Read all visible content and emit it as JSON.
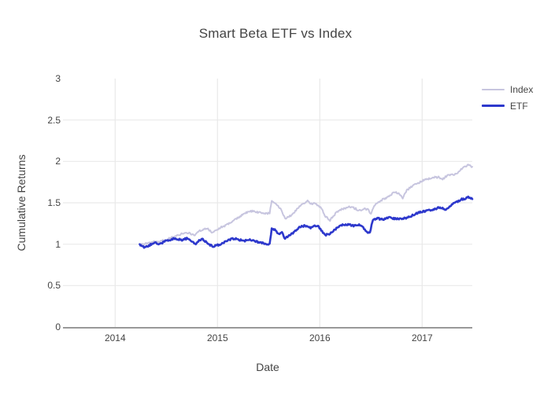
{
  "title": "Smart Beta ETF vs Index",
  "colors": {
    "text": "#444444",
    "grid": "#e9e9e9",
    "axis_line": "#999999",
    "background": "#ffffff",
    "index_line": "#c7c5df",
    "etf_line": "#2d38cc"
  },
  "legend": {
    "items": [
      "Index",
      "ETF"
    ]
  },
  "chart_data": {
    "type": "line",
    "title": "Smart Beta ETF vs Index",
    "xlabel": "Date",
    "ylabel": "Cumulative Returns",
    "xlim": [
      2013.49,
      2017.49
    ],
    "ylim": [
      0,
      3
    ],
    "grid": true,
    "legend_position": "right-outside",
    "noise_amplitude": 0.011,
    "xticks": [
      {
        "v": 2014,
        "label": "2014"
      },
      {
        "v": 2015,
        "label": "2015"
      },
      {
        "v": 2016,
        "label": "2016"
      },
      {
        "v": 2017,
        "label": "2017"
      }
    ],
    "yticks": [
      {
        "v": 0,
        "label": "0"
      },
      {
        "v": 0.5,
        "label": "0.5"
      },
      {
        "v": 1,
        "label": "1"
      },
      {
        "v": 1.5,
        "label": "1.5"
      },
      {
        "v": 2,
        "label": "2"
      },
      {
        "v": 2.5,
        "label": "2.5"
      },
      {
        "v": 3,
        "label": "3"
      }
    ],
    "series": [
      {
        "name": "Index",
        "color": "#c7c5df",
        "width": 2,
        "points": [
          [
            2014.24,
            1.0
          ],
          [
            2014.27,
            0.995
          ],
          [
            2014.31,
            1.01
          ],
          [
            2014.36,
            1.025
          ],
          [
            2014.42,
            1.03
          ],
          [
            2014.49,
            1.05
          ],
          [
            2014.55,
            1.08
          ],
          [
            2014.59,
            1.1
          ],
          [
            2014.64,
            1.12
          ],
          [
            2014.7,
            1.14
          ],
          [
            2014.74,
            1.125
          ],
          [
            2014.78,
            1.11
          ],
          [
            2014.82,
            1.155
          ],
          [
            2014.87,
            1.185
          ],
          [
            2014.9,
            1.19
          ],
          [
            2014.95,
            1.14
          ],
          [
            2015.0,
            1.175
          ],
          [
            2015.03,
            1.2
          ],
          [
            2015.1,
            1.24
          ],
          [
            2015.18,
            1.3
          ],
          [
            2015.26,
            1.37
          ],
          [
            2015.31,
            1.39
          ],
          [
            2015.34,
            1.4
          ],
          [
            2015.38,
            1.385
          ],
          [
            2015.41,
            1.38
          ],
          [
            2015.45,
            1.37
          ],
          [
            2015.49,
            1.37
          ],
          [
            2015.51,
            1.38
          ],
          [
            2015.53,
            1.53
          ],
          [
            2015.56,
            1.505
          ],
          [
            2015.6,
            1.445
          ],
          [
            2015.63,
            1.4
          ],
          [
            2015.66,
            1.31
          ],
          [
            2015.7,
            1.33
          ],
          [
            2015.73,
            1.36
          ],
          [
            2015.76,
            1.4
          ],
          [
            2015.8,
            1.46
          ],
          [
            2015.84,
            1.49
          ],
          [
            2015.88,
            1.52
          ],
          [
            2015.91,
            1.49
          ],
          [
            2015.95,
            1.49
          ],
          [
            2015.99,
            1.46
          ],
          [
            2016.02,
            1.43
          ],
          [
            2016.05,
            1.34
          ],
          [
            2016.1,
            1.29
          ],
          [
            2016.16,
            1.38
          ],
          [
            2016.23,
            1.43
          ],
          [
            2016.28,
            1.45
          ],
          [
            2016.33,
            1.44
          ],
          [
            2016.38,
            1.41
          ],
          [
            2016.43,
            1.425
          ],
          [
            2016.47,
            1.42
          ],
          [
            2016.5,
            1.36
          ],
          [
            2016.53,
            1.47
          ],
          [
            2016.57,
            1.5
          ],
          [
            2016.62,
            1.545
          ],
          [
            2016.67,
            1.57
          ],
          [
            2016.73,
            1.63
          ],
          [
            2016.77,
            1.61
          ],
          [
            2016.81,
            1.56
          ],
          [
            2016.85,
            1.65
          ],
          [
            2016.89,
            1.69
          ],
          [
            2016.96,
            1.74
          ],
          [
            2017.01,
            1.77
          ],
          [
            2017.06,
            1.79
          ],
          [
            2017.11,
            1.805
          ],
          [
            2017.16,
            1.81
          ],
          [
            2017.2,
            1.79
          ],
          [
            2017.25,
            1.83
          ],
          [
            2017.3,
            1.84
          ],
          [
            2017.34,
            1.855
          ],
          [
            2017.38,
            1.91
          ],
          [
            2017.42,
            1.94
          ],
          [
            2017.45,
            1.955
          ],
          [
            2017.49,
            1.935
          ]
        ]
      },
      {
        "name": "ETF",
        "color": "#2d38cc",
        "width": 2.6,
        "points": [
          [
            2014.24,
            1.0
          ],
          [
            2014.26,
            0.975
          ],
          [
            2014.29,
            0.96
          ],
          [
            2014.33,
            0.985
          ],
          [
            2014.36,
            1.0
          ],
          [
            2014.4,
            1.015
          ],
          [
            2014.44,
            1.0
          ],
          [
            2014.49,
            1.04
          ],
          [
            2014.54,
            1.055
          ],
          [
            2014.59,
            1.07
          ],
          [
            2014.63,
            1.055
          ],
          [
            2014.66,
            1.05
          ],
          [
            2014.7,
            1.07
          ],
          [
            2014.74,
            1.04
          ],
          [
            2014.78,
            1.0
          ],
          [
            2014.82,
            1.04
          ],
          [
            2014.85,
            1.06
          ],
          [
            2014.9,
            1.02
          ],
          [
            2014.95,
            0.97
          ],
          [
            2015.0,
            0.99
          ],
          [
            2015.03,
            1.0
          ],
          [
            2015.07,
            1.03
          ],
          [
            2015.1,
            1.05
          ],
          [
            2015.14,
            1.065
          ],
          [
            2015.18,
            1.07
          ],
          [
            2015.22,
            1.05
          ],
          [
            2015.26,
            1.04
          ],
          [
            2015.3,
            1.05
          ],
          [
            2015.34,
            1.05
          ],
          [
            2015.38,
            1.03
          ],
          [
            2015.41,
            1.02
          ],
          [
            2015.45,
            1.01
          ],
          [
            2015.49,
            1.0
          ],
          [
            2015.51,
            1.005
          ],
          [
            2015.53,
            1.19
          ],
          [
            2015.56,
            1.17
          ],
          [
            2015.6,
            1.12
          ],
          [
            2015.63,
            1.14
          ],
          [
            2015.66,
            1.07
          ],
          [
            2015.7,
            1.11
          ],
          [
            2015.73,
            1.13
          ],
          [
            2015.76,
            1.16
          ],
          [
            2015.8,
            1.2
          ],
          [
            2015.84,
            1.22
          ],
          [
            2015.88,
            1.22
          ],
          [
            2015.91,
            1.2
          ],
          [
            2015.95,
            1.22
          ],
          [
            2015.99,
            1.21
          ],
          [
            2016.03,
            1.14
          ],
          [
            2016.06,
            1.11
          ],
          [
            2016.1,
            1.13
          ],
          [
            2016.14,
            1.17
          ],
          [
            2016.2,
            1.23
          ],
          [
            2016.26,
            1.24
          ],
          [
            2016.3,
            1.23
          ],
          [
            2016.33,
            1.22
          ],
          [
            2016.36,
            1.23
          ],
          [
            2016.4,
            1.23
          ],
          [
            2016.44,
            1.18
          ],
          [
            2016.47,
            1.145
          ],
          [
            2016.49,
            1.15
          ],
          [
            2016.52,
            1.3
          ],
          [
            2016.57,
            1.31
          ],
          [
            2016.62,
            1.3
          ],
          [
            2016.67,
            1.32
          ],
          [
            2016.73,
            1.31
          ],
          [
            2016.78,
            1.305
          ],
          [
            2016.81,
            1.31
          ],
          [
            2016.85,
            1.32
          ],
          [
            2016.89,
            1.34
          ],
          [
            2016.96,
            1.38
          ],
          [
            2017.01,
            1.395
          ],
          [
            2017.06,
            1.41
          ],
          [
            2017.11,
            1.42
          ],
          [
            2017.16,
            1.44
          ],
          [
            2017.2,
            1.43
          ],
          [
            2017.24,
            1.42
          ],
          [
            2017.29,
            1.48
          ],
          [
            2017.34,
            1.51
          ],
          [
            2017.38,
            1.54
          ],
          [
            2017.42,
            1.55
          ],
          [
            2017.45,
            1.575
          ],
          [
            2017.49,
            1.545
          ]
        ]
      }
    ]
  }
}
